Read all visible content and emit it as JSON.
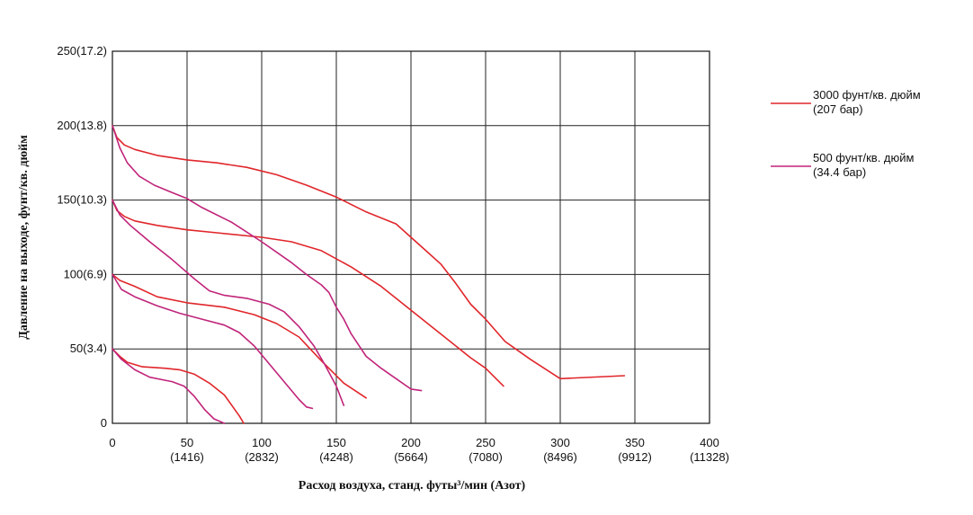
{
  "chart_data": {
    "type": "line",
    "xlabel": "Расход воздуха, станд. футы³/мин (Азот)",
    "ylabel": "Давление на выходе, фунт/кв. дюйм",
    "xlim": [
      0,
      400
    ],
    "ylim": [
      0,
      250
    ],
    "grid": true,
    "legend_position": "right",
    "x_ticks": [
      {
        "value": 0,
        "line1": "0",
        "line2": ""
      },
      {
        "value": 50,
        "line1": "50",
        "line2": "(1416)"
      },
      {
        "value": 100,
        "line1": "100",
        "line2": "(2832)"
      },
      {
        "value": 150,
        "line1": "150",
        "line2": "(4248)"
      },
      {
        "value": 200,
        "line1": "200",
        "line2": "(5664)"
      },
      {
        "value": 250,
        "line1": "250",
        "line2": "(7080)"
      },
      {
        "value": 300,
        "line1": "300",
        "line2": "(8496)"
      },
      {
        "value": 350,
        "line1": "350",
        "line2": "(9912)"
      },
      {
        "value": 400,
        "line1": "400",
        "line2": "(11328)"
      }
    ],
    "y_ticks": [
      {
        "value": 0,
        "label": "0"
      },
      {
        "value": 50,
        "label": "50(3.4)"
      },
      {
        "value": 100,
        "label": "100(6.9)"
      },
      {
        "value": 150,
        "label": "150(10.3)"
      },
      {
        "value": 200,
        "label": "200(13.8)"
      },
      {
        "value": 250,
        "label": "250(17.2)"
      }
    ],
    "legend": [
      {
        "color": "#e0262b",
        "line1": "3000 фунт/кв. дюйм",
        "line2": "(207 бар)"
      },
      {
        "color": "#c0247a",
        "line1": "500 фунт/кв. дюйм",
        "line2": "(34.4 бар)"
      }
    ],
    "series": [
      {
        "group": 0,
        "color": "#e0262b",
        "points": [
          [
            0,
            200
          ],
          [
            3,
            192
          ],
          [
            8,
            187
          ],
          [
            15,
            184
          ],
          [
            30,
            180
          ],
          [
            50,
            177
          ],
          [
            70,
            175
          ],
          [
            90,
            172
          ],
          [
            110,
            167
          ],
          [
            130,
            160
          ],
          [
            150,
            152
          ],
          [
            170,
            142
          ],
          [
            190,
            134
          ],
          [
            200,
            125
          ],
          [
            210,
            116
          ],
          [
            220,
            107
          ],
          [
            230,
            94
          ],
          [
            240,
            80
          ],
          [
            250,
            70
          ],
          [
            263,
            55
          ],
          [
            280,
            43
          ],
          [
            300,
            30
          ],
          [
            343,
            32
          ]
        ]
      },
      {
        "group": 0,
        "color": "#e0262b",
        "points": [
          [
            0,
            150
          ],
          [
            3,
            143
          ],
          [
            8,
            139
          ],
          [
            15,
            136
          ],
          [
            30,
            133
          ],
          [
            50,
            130
          ],
          [
            70,
            128
          ],
          [
            100,
            125
          ],
          [
            120,
            122
          ],
          [
            140,
            116
          ],
          [
            160,
            105
          ],
          [
            180,
            92
          ],
          [
            200,
            76
          ],
          [
            220,
            60
          ],
          [
            240,
            44
          ],
          [
            250,
            37
          ],
          [
            262,
            25
          ]
        ]
      },
      {
        "group": 0,
        "color": "#e0262b",
        "points": [
          [
            0,
            100
          ],
          [
            5,
            96
          ],
          [
            15,
            92
          ],
          [
            30,
            85
          ],
          [
            50,
            81
          ],
          [
            75,
            78
          ],
          [
            95,
            73
          ],
          [
            110,
            67
          ],
          [
            125,
            58
          ],
          [
            140,
            42
          ],
          [
            155,
            27
          ],
          [
            170,
            17
          ]
        ]
      },
      {
        "group": 0,
        "color": "#e0262b",
        "points": [
          [
            0,
            50
          ],
          [
            5,
            45
          ],
          [
            10,
            41
          ],
          [
            20,
            38
          ],
          [
            35,
            37
          ],
          [
            45,
            36
          ],
          [
            55,
            33
          ],
          [
            65,
            27
          ],
          [
            75,
            19
          ],
          [
            85,
            5
          ],
          [
            88,
            0
          ]
        ]
      },
      {
        "group": 1,
        "color": "#c0247a",
        "points": [
          [
            0,
            200
          ],
          [
            5,
            185
          ],
          [
            10,
            175
          ],
          [
            18,
            166
          ],
          [
            28,
            160
          ],
          [
            40,
            155
          ],
          [
            50,
            151
          ],
          [
            60,
            145
          ],
          [
            80,
            135
          ],
          [
            100,
            122
          ],
          [
            120,
            108
          ],
          [
            130,
            100
          ],
          [
            140,
            93
          ],
          [
            145,
            88
          ],
          [
            150,
            78
          ],
          [
            155,
            70
          ],
          [
            160,
            60
          ],
          [
            170,
            45
          ],
          [
            180,
            37
          ],
          [
            190,
            30
          ],
          [
            200,
            23
          ],
          [
            207,
            22
          ]
        ]
      },
      {
        "group": 1,
        "color": "#c0247a",
        "points": [
          [
            0,
            150
          ],
          [
            5,
            140
          ],
          [
            12,
            133
          ],
          [
            25,
            122
          ],
          [
            40,
            110
          ],
          [
            55,
            97
          ],
          [
            65,
            89
          ],
          [
            75,
            86
          ],
          [
            90,
            84
          ],
          [
            105,
            80
          ],
          [
            115,
            75
          ],
          [
            125,
            65
          ],
          [
            135,
            52
          ],
          [
            142,
            40
          ],
          [
            150,
            25
          ],
          [
            155,
            12
          ]
        ]
      },
      {
        "group": 1,
        "color": "#c0247a",
        "points": [
          [
            0,
            100
          ],
          [
            6,
            90
          ],
          [
            15,
            85
          ],
          [
            30,
            79
          ],
          [
            45,
            74
          ],
          [
            60,
            70
          ],
          [
            75,
            66
          ],
          [
            85,
            61
          ],
          [
            95,
            52
          ],
          [
            105,
            40
          ],
          [
            115,
            28
          ],
          [
            125,
            16
          ],
          [
            130,
            11
          ],
          [
            134,
            10
          ]
        ]
      },
      {
        "group": 1,
        "color": "#c0247a",
        "points": [
          [
            0,
            50
          ],
          [
            6,
            43
          ],
          [
            15,
            36
          ],
          [
            25,
            31
          ],
          [
            35,
            29
          ],
          [
            40,
            28
          ],
          [
            48,
            25
          ],
          [
            55,
            18
          ],
          [
            62,
            9
          ],
          [
            68,
            3
          ],
          [
            75,
            0
          ]
        ]
      }
    ]
  }
}
